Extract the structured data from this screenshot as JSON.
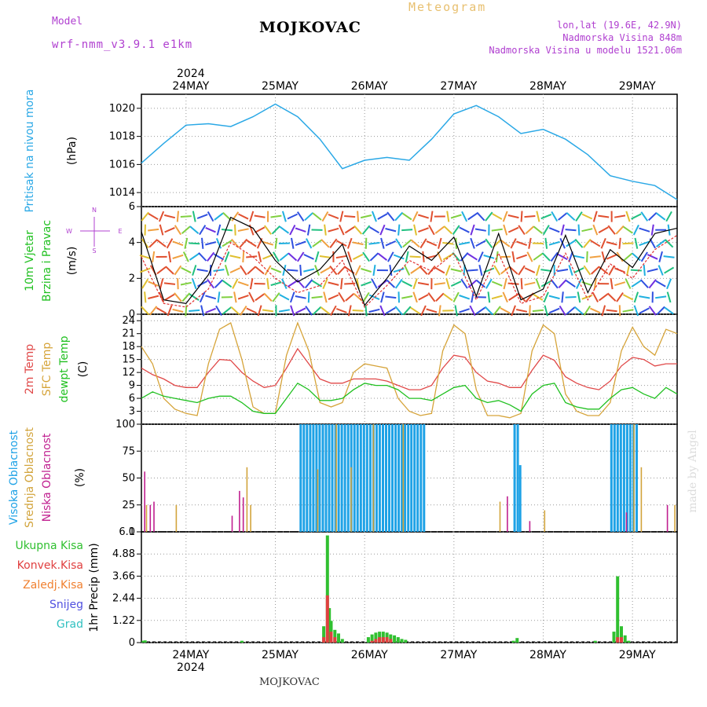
{
  "header": {
    "model_label": "Model",
    "model_name": "wrf-nmm_v3.9.1 e1km",
    "location": "MOJKOVAC",
    "meteogram": "Meteogram",
    "lonlat": "lon,lat (19.6E, 42.9N)",
    "altitude": "Nadmorska Visina 848m",
    "model_altitude": "Nadmorska Visina u modelu 1521.06m"
  },
  "footer": {
    "location": "MOJKOVAC",
    "watermark": "made by Angel"
  },
  "colors": {
    "pressure": "#2aa8e6",
    "wind_max": "#000000",
    "wind_mean": "#e03030",
    "t2m": "#e04848",
    "tsfc": "#d6a43a",
    "dewpt": "#20c020",
    "high_cloud": "#1ea2e6",
    "mid_cloud": "#d2a43c",
    "low_cloud": "#c02090",
    "total_precip": "#30c030",
    "conv_precip": "#e04040",
    "frz_precip": "#f08030",
    "snow": "#5050e0",
    "hail": "#30c0c0"
  },
  "chart_data": [
    {
      "type": "line",
      "panel": "pressure",
      "ylabel": [
        "Pritisak na nivou mora",
        "(hPa)"
      ],
      "yticks": [
        1014,
        1016,
        1018,
        1020
      ],
      "ylim": [
        1013,
        1021
      ],
      "x_labels_top": {
        "year": "2024",
        "days": [
          "24MAY",
          "25MAY",
          "26MAY",
          "27MAY",
          "28MAY",
          "29MAY"
        ]
      },
      "x_hours": [
        0,
        6,
        12,
        18,
        24,
        30,
        36,
        42,
        48,
        54,
        60,
        66,
        72,
        78,
        84,
        90,
        96,
        102,
        108,
        114,
        120,
        126,
        132,
        138,
        144
      ],
      "series": [
        {
          "values": [
            1016.1,
            1017.5,
            1018.8,
            1018.9,
            1018.7,
            1019.4,
            1020.3,
            1019.4,
            1017.8,
            1015.7,
            1016.3,
            1016.5,
            1016.3,
            1017.8,
            1019.6,
            1020.2,
            1019.4,
            1018.2,
            1018.5,
            1017.8,
            1016.7,
            1015.2,
            1014.8,
            1014.5,
            1013.5
          ]
        }
      ]
    },
    {
      "type": "line",
      "panel": "wind",
      "ylabel": [
        "10m Vjetar",
        "Brzina i Pravac",
        "(m/s)"
      ],
      "compass": {
        "n": "N",
        "s": "S",
        "e": "E",
        "w": "W"
      },
      "yticks": [
        0,
        2,
        4,
        6
      ],
      "ylim": [
        0,
        6
      ],
      "x_hours": [
        0,
        6,
        12,
        18,
        24,
        30,
        36,
        42,
        48,
        54,
        60,
        66,
        72,
        78,
        84,
        90,
        96,
        102,
        108,
        114,
        120,
        126,
        132,
        138,
        144
      ],
      "series": [
        {
          "values": [
            4.6,
            0.8,
            0.6,
            2.2,
            5.4,
            4.8,
            3.0,
            1.8,
            2.5,
            3.9,
            0.5,
            2.0,
            3.8,
            3.0,
            4.3,
            1.0,
            4.5,
            0.8,
            1.4,
            4.4,
            1.2,
            3.6,
            2.6,
            4.5,
            4.8
          ]
        },
        {
          "values": [
            3.2,
            0.6,
            0.4,
            1.4,
            4.0,
            3.2,
            2.0,
            1.2,
            1.6,
            3.0,
            0.4,
            1.6,
            3.0,
            2.4,
            3.4,
            0.8,
            3.4,
            0.6,
            1.0,
            3.4,
            0.8,
            2.8,
            2.0,
            3.6,
            4.4
          ]
        }
      ]
    },
    {
      "type": "line",
      "panel": "temperature",
      "ylabel": [
        "2m Temp",
        "SFC Temp",
        "dewpt Temp",
        "(C)"
      ],
      "yticks": [
        3,
        6,
        9,
        12,
        15,
        18,
        21,
        24
      ],
      "ylim": [
        0,
        25.5
      ],
      "x_hours": [
        0,
        3,
        6,
        9,
        12,
        15,
        18,
        21,
        24,
        27,
        30,
        33,
        36,
        39,
        42,
        45,
        48,
        51,
        54,
        57,
        60,
        63,
        66,
        69,
        72,
        75,
        78,
        81,
        84,
        87,
        90,
        93,
        96,
        99,
        102,
        105,
        108,
        111,
        114,
        117,
        120,
        123,
        126,
        129,
        132,
        135,
        138,
        141,
        144
      ],
      "series": [
        {
          "name": "2m Temp",
          "values": [
            13,
            11.5,
            10.5,
            9,
            8.5,
            8.5,
            12,
            15,
            14.8,
            12,
            10,
            8.5,
            9,
            13,
            17.5,
            14,
            10.5,
            9.5,
            9.5,
            10.5,
            10.5,
            10.5,
            10,
            9,
            8,
            8,
            9,
            13,
            16,
            15.5,
            12,
            10,
            9.5,
            8.5,
            8.5,
            12.5,
            16,
            14.8,
            11,
            9.5,
            8.5,
            8,
            10,
            13.5,
            15.5,
            15,
            13.5,
            14,
            14
          ]
        },
        {
          "name": "SFC Temp",
          "values": [
            18,
            14,
            6,
            3.5,
            2.5,
            2,
            14,
            22,
            23.5,
            15,
            4,
            2.5,
            2.5,
            16,
            23.5,
            17,
            5,
            4,
            5,
            12,
            14,
            13.5,
            13,
            6,
            3,
            2,
            2.5,
            17,
            23,
            21,
            8,
            2,
            2,
            1.5,
            2.5,
            17,
            23,
            21,
            7,
            3,
            2,
            2,
            5,
            17,
            22.5,
            18,
            16,
            22,
            21
          ]
        },
        {
          "name": "dewpt Temp",
          "values": [
            6,
            7.5,
            6.5,
            6,
            5.5,
            5,
            6,
            6.5,
            6.5,
            5,
            3,
            2.5,
            2.5,
            6,
            9.5,
            8,
            5.5,
            5.5,
            6,
            8,
            9.5,
            9,
            9,
            8,
            6,
            6,
            5.5,
            7,
            8.5,
            9,
            6,
            5,
            5.5,
            4.5,
            3,
            7,
            9,
            9.5,
            5,
            4,
            3.5,
            3.5,
            6,
            8,
            8.5,
            7,
            6,
            8.5,
            7
          ]
        }
      ]
    },
    {
      "type": "bar",
      "panel": "cloud",
      "ylabel": [
        "Visoka Oblacnost",
        "Srednja Oblacnost",
        "Niska Oblacnost",
        "(%)"
      ],
      "yticks": [
        0,
        25,
        50,
        75,
        100
      ],
      "ylim": [
        0,
        100
      ],
      "series": [
        {
          "name": "Visoka Oblacnost",
          "spans": [
            {
              "from_hour": 42.5,
              "to_hour": 76,
              "level": 100
            },
            {
              "from_hour": 100,
              "to_hour": 101,
              "level": 100
            },
            {
              "from_hour": 101.5,
              "to_hour": 102,
              "level": 62
            },
            {
              "from_hour": 126,
              "to_hour": 133,
              "level": 100
            }
          ]
        },
        {
          "name": "Srednja Oblacnost",
          "points": [
            [
              1,
              25
            ],
            [
              9,
              25
            ],
            [
              27,
              30
            ],
            [
              28,
              60
            ],
            [
              29,
              25
            ],
            [
              47,
              58
            ],
            [
              52,
              100
            ],
            [
              56,
              60
            ],
            [
              62,
              100
            ],
            [
              70,
              100
            ],
            [
              96,
              28
            ],
            [
              108,
              20
            ],
            [
              132,
              100
            ],
            [
              134,
              60
            ],
            [
              143,
              25
            ]
          ]
        },
        {
          "name": "Niska Oblacnost",
          "points": [
            [
              0.5,
              56
            ],
            [
              2,
              25
            ],
            [
              3,
              28
            ],
            [
              24,
              15
            ],
            [
              26,
              38
            ],
            [
              27,
              32
            ],
            [
              98,
              33
            ],
            [
              104,
              10
            ],
            [
              130,
              18
            ],
            [
              141,
              25
            ]
          ]
        }
      ]
    },
    {
      "type": "bar",
      "panel": "precip",
      "ylabel": [
        "1hr Precip (mm)"
      ],
      "legend": [
        "Ukupna Kisa",
        "Konvek.Kisa",
        "Zaledj.Kisa",
        "Snijeg",
        "Grad"
      ],
      "yticks": [
        0,
        1.22,
        2.44,
        3.66,
        4.88,
        6.1
      ],
      "ylim": [
        0,
        6.1
      ],
      "x_labels_bottom": {
        "year": "2024",
        "days": [
          "24MAY",
          "25MAY",
          "26MAY",
          "27MAY",
          "28MAY",
          "29MAY"
        ]
      },
      "series": [
        {
          "name": "Ukupna Kisa",
          "points": [
            [
              0.5,
              0.1
            ],
            [
              1,
              0.12
            ],
            [
              27,
              0.1
            ],
            [
              49,
              0.9
            ],
            [
              50,
              5.9
            ],
            [
              50.5,
              1.9
            ],
            [
              51,
              1.2
            ],
            [
              52,
              0.7
            ],
            [
              53,
              0.5
            ],
            [
              54,
              0.2
            ],
            [
              61,
              0.3
            ],
            [
              62,
              0.45
            ],
            [
              63,
              0.55
            ],
            [
              64,
              0.6
            ],
            [
              65,
              0.6
            ],
            [
              66,
              0.55
            ],
            [
              67,
              0.45
            ],
            [
              68,
              0.4
            ],
            [
              69,
              0.3
            ],
            [
              70,
              0.2
            ],
            [
              71,
              0.15
            ],
            [
              100,
              0.1
            ],
            [
              101,
              0.25
            ],
            [
              122,
              0.1
            ],
            [
              127,
              0.6
            ],
            [
              128,
              3.65
            ],
            [
              129,
              0.9
            ],
            [
              130,
              0.4
            ],
            [
              131,
              0.1
            ]
          ]
        },
        {
          "name": "Konvek.Kisa",
          "points": [
            [
              49,
              0.3
            ],
            [
              50,
              2.6
            ],
            [
              51,
              0.6
            ],
            [
              52,
              0.3
            ],
            [
              62,
              0.1
            ],
            [
              63,
              0.2
            ],
            [
              64,
              0.3
            ],
            [
              65,
              0.3
            ],
            [
              66,
              0.3
            ],
            [
              67,
              0.2
            ],
            [
              128,
              0.3
            ],
            [
              129,
              0.3
            ]
          ]
        }
      ]
    }
  ]
}
